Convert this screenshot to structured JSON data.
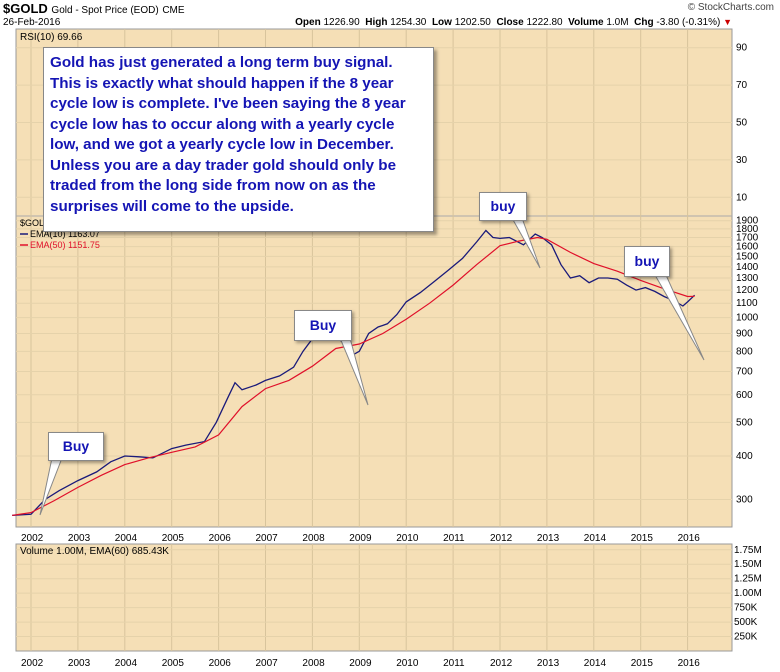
{
  "header": {
    "symbol": "$GOLD",
    "description": "Gold - Spot Price (EOD)",
    "exchange": "CME",
    "date": "26-Feb-2016",
    "brand": "© StockCharts.com",
    "open_label": "Open",
    "open": "1226.90",
    "high_label": "High",
    "high": "1254.30",
    "low_label": "Low",
    "low": "1202.50",
    "close_label": "Close",
    "close": "1222.80",
    "volume_label": "Volume",
    "volume": "1.0M",
    "chg_label": "Chg",
    "chg": "-3.80 (-0.31%)"
  },
  "annotations": {
    "note": "Gold has just generated a long term buy signal. This is exactly what should happen if the 8 year cycle low is complete. I've been saying the 8 year cycle low has to occur along with a yearly cycle low, and we got a yearly cycle low in December. Unless you are a day trader gold should only be traded from the long side from now on as the surprises will come to the upside.",
    "buy_2002": "Buy",
    "buy_2009": "Buy",
    "buy_2012": "buy",
    "buy_2016": "buy"
  },
  "colors": {
    "panel_bg": "#f5dfb6",
    "price_line": "#1a1a7a",
    "ema50_line": "#e0102a",
    "text_blue": "#1414b4"
  },
  "chart_data": [
    {
      "type": "line",
      "panel": "rsi",
      "legend": [
        "RSI(10) 69.66"
      ],
      "yticks": [
        "90",
        "70",
        "50",
        "30",
        "10"
      ],
      "ylim": [
        0,
        100
      ]
    },
    {
      "type": "line",
      "panel": "price",
      "legend": [
        "$GOLD",
        "EMA(10) 1163.07",
        "EMA(50) 1151.75"
      ],
      "xticks": [
        "2002",
        "2003",
        "2004",
        "2005",
        "2006",
        "2007",
        "2008",
        "2009",
        "2010",
        "2011",
        "2012",
        "2013",
        "2014",
        "2015",
        "2016"
      ],
      "yticks": [
        "1900",
        "1800",
        "1700",
        "1600",
        "1500",
        "1400",
        "1300",
        "1200",
        "1100",
        "1000",
        "900",
        "800",
        "700",
        "600",
        "500",
        "400",
        "300"
      ],
      "ylim": [
        250,
        1960
      ],
      "ylog": true,
      "series": [
        {
          "name": "EMA(10) 1163.07",
          "color": "#1a1a7a",
          "x": [
            2001.6,
            2002.0,
            2002.3,
            2002.6,
            2003.0,
            2003.4,
            2003.7,
            2004.0,
            2004.3,
            2004.6,
            2005.0,
            2005.3,
            2005.7,
            2005.95,
            2006.2,
            2006.35,
            2006.5,
            2006.8,
            2007.0,
            2007.3,
            2007.6,
            2007.8,
            2008.0,
            2008.2,
            2008.4,
            2008.55,
            2008.7,
            2008.85,
            2009.0,
            2009.2,
            2009.4,
            2009.6,
            2009.8,
            2010.0,
            2010.3,
            2010.6,
            2010.9,
            2011.2,
            2011.5,
            2011.7,
            2011.85,
            2012.0,
            2012.2,
            2012.5,
            2012.75,
            2012.9,
            2013.1,
            2013.3,
            2013.5,
            2013.7,
            2013.9,
            2014.1,
            2014.3,
            2014.5,
            2014.7,
            2014.9,
            2015.1,
            2015.3,
            2015.5,
            2015.7,
            2015.9,
            2016.0,
            2016.15
          ],
          "y": [
            270,
            272,
            300,
            318,
            340,
            360,
            385,
            400,
            398,
            395,
            420,
            430,
            440,
            500,
            590,
            650,
            620,
            640,
            660,
            680,
            720,
            800,
            870,
            920,
            900,
            870,
            840,
            780,
            800,
            900,
            940,
            960,
            1020,
            1110,
            1180,
            1270,
            1370,
            1480,
            1650,
            1780,
            1700,
            1690,
            1700,
            1620,
            1740,
            1700,
            1620,
            1420,
            1300,
            1320,
            1260,
            1300,
            1300,
            1290,
            1240,
            1200,
            1220,
            1190,
            1150,
            1120,
            1080,
            1110,
            1160
          ]
        },
        {
          "name": "EMA(50) 1151.75",
          "color": "#e0102a",
          "x": [
            2001.6,
            2002.0,
            2002.5,
            2003.0,
            2003.5,
            2004.0,
            2004.5,
            2005.0,
            2005.5,
            2006.0,
            2006.5,
            2007.0,
            2007.5,
            2008.0,
            2008.5,
            2009.0,
            2009.5,
            2010.0,
            2010.5,
            2011.0,
            2011.5,
            2012.0,
            2012.4,
            2012.8,
            2013.0,
            2013.5,
            2014.0,
            2014.5,
            2015.0,
            2015.5,
            2016.0,
            2016.15
          ],
          "y": [
            270,
            275,
            298,
            325,
            352,
            378,
            395,
            410,
            425,
            460,
            555,
            625,
            660,
            725,
            815,
            840,
            900,
            990,
            1100,
            1240,
            1420,
            1610,
            1660,
            1700,
            1680,
            1540,
            1430,
            1360,
            1280,
            1210,
            1150,
            1152
          ]
        }
      ]
    },
    {
      "type": "bar",
      "panel": "volume",
      "legend": [
        "Volume 1.00M, EMA(60) 685.43K"
      ],
      "yticks": [
        "1.75M",
        "1.50M",
        "1.25M",
        "1.00M",
        "750K",
        "500K",
        "250K"
      ],
      "xticks": [
        "2002",
        "2003",
        "2004",
        "2005",
        "2006",
        "2007",
        "2008",
        "2009",
        "2010",
        "2011",
        "2012",
        "2013",
        "2014",
        "2015",
        "2016"
      ]
    }
  ]
}
